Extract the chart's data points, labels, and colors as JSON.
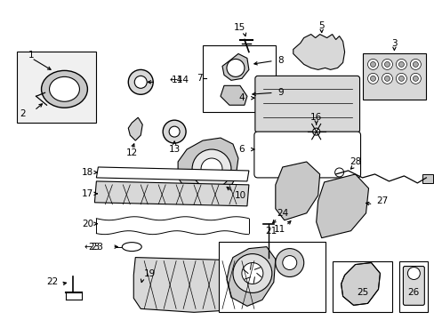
{
  "bg_color": "#ffffff",
  "fig_width": 4.89,
  "fig_height": 3.6,
  "dpi": 100,
  "line_color": "#000000",
  "gray_fill": "#d8d8d8",
  "light_gray": "#eeeeee",
  "label_fontsize": 7.5
}
